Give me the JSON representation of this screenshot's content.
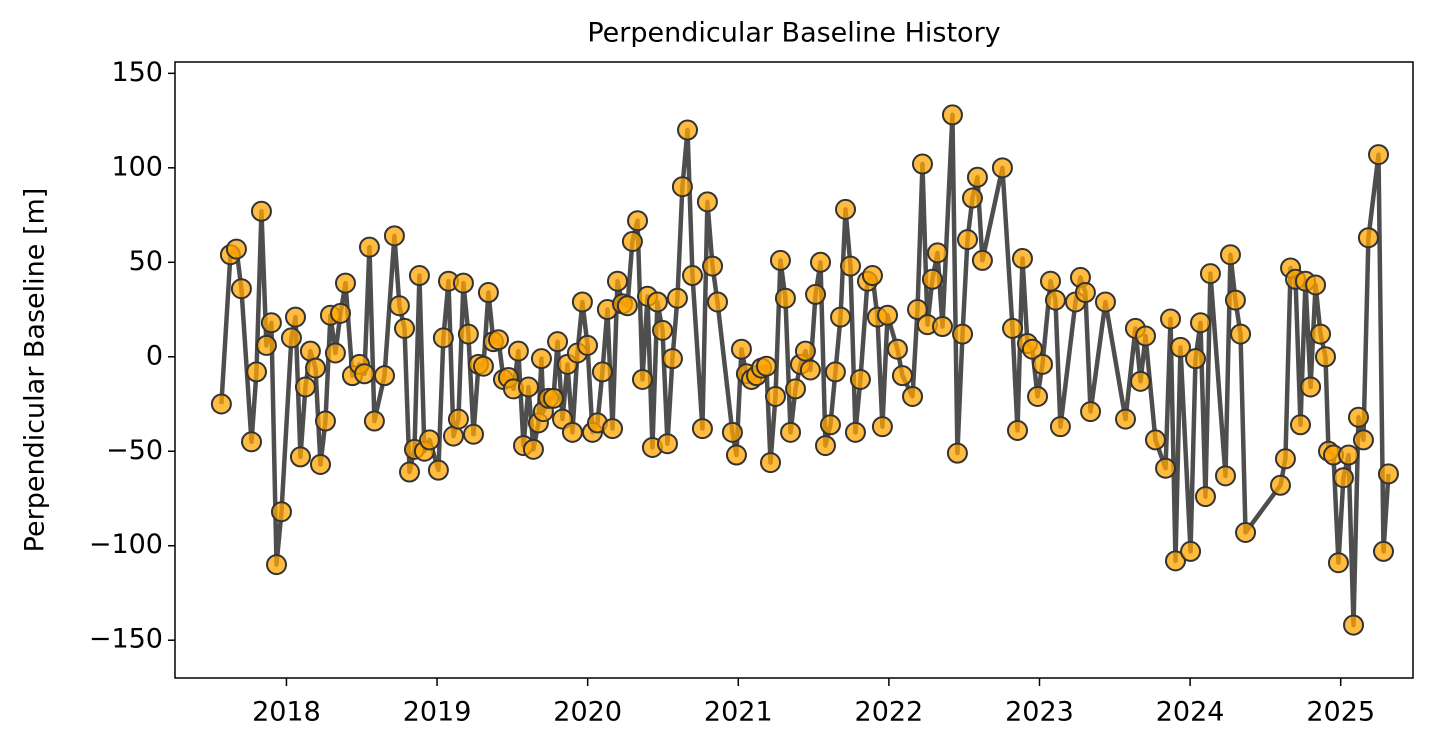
{
  "chart_data": {
    "type": "line",
    "title": "Perpendicular Baseline History",
    "y_label": "Perpendicular Baseline [m]",
    "line_color": "#444444",
    "marker_color": "#ffa500",
    "marker_edge_color": "#333333",
    "x": [
      2017.568,
      2017.628,
      2017.668,
      2017.701,
      2017.768,
      2017.801,
      2017.834,
      2017.867,
      2017.9,
      2017.934,
      2017.967,
      2018.033,
      2018.06,
      2018.093,
      2018.126,
      2018.159,
      2018.193,
      2018.226,
      2018.259,
      2018.292,
      2018.325,
      2018.359,
      2018.392,
      2018.438,
      2018.485,
      2018.518,
      2018.551,
      2018.584,
      2018.651,
      2018.717,
      2018.75,
      2018.784,
      2018.817,
      2018.85,
      2018.883,
      2018.916,
      2018.95,
      2019.009,
      2019.042,
      2019.076,
      2019.109,
      2019.142,
      2019.175,
      2019.208,
      2019.242,
      2019.275,
      2019.308,
      2019.341,
      2019.374,
      2019.408,
      2019.441,
      2019.474,
      2019.507,
      2019.54,
      2019.574,
      2019.607,
      2019.64,
      2019.673,
      2019.693,
      2019.706,
      2019.74,
      2019.773,
      2019.8,
      2019.833,
      2019.866,
      2019.899,
      2019.932,
      2019.965,
      2019.999,
      2020.032,
      2020.065,
      2020.098,
      2020.131,
      2020.165,
      2020.198,
      2020.231,
      2020.264,
      2020.297,
      2020.331,
      2020.364,
      2020.397,
      2020.43,
      2020.463,
      2020.497,
      2020.53,
      2020.563,
      2020.596,
      2020.629,
      2020.663,
      2020.696,
      2020.762,
      2020.795,
      2020.829,
      2020.862,
      2020.961,
      2020.988,
      2021.021,
      2021.054,
      2021.088,
      2021.121,
      2021.154,
      2021.187,
      2021.214,
      2021.247,
      2021.28,
      2021.313,
      2021.347,
      2021.38,
      2021.413,
      2021.446,
      2021.479,
      2021.513,
      2021.546,
      2021.579,
      2021.612,
      2021.645,
      2021.679,
      2021.712,
      2021.745,
      2021.778,
      2021.811,
      2021.858,
      2021.891,
      2021.924,
      2021.957,
      2021.991,
      2022.057,
      2022.09,
      2022.157,
      2022.19,
      2022.223,
      2022.256,
      2022.289,
      2022.323,
      2022.356,
      2022.422,
      2022.455,
      2022.489,
      2022.522,
      2022.555,
      2022.588,
      2022.621,
      2022.754,
      2022.821,
      2022.854,
      2022.887,
      2022.92,
      2022.953,
      2022.987,
      2023.02,
      2023.073,
      2023.106,
      2023.139,
      2023.239,
      2023.272,
      2023.305,
      2023.339,
      2023.438,
      2023.571,
      2023.637,
      2023.671,
      2023.704,
      2023.77,
      2023.837,
      2023.87,
      2023.903,
      2023.936,
      2024.003,
      2024.036,
      2024.069,
      2024.102,
      2024.135,
      2024.235,
      2024.268,
      2024.301,
      2024.335,
      2024.368,
      2024.6,
      2024.633,
      2024.667,
      2024.7,
      2024.733,
      2024.766,
      2024.8,
      2024.833,
      2024.866,
      2024.899,
      2024.919,
      2024.952,
      2024.985,
      2025.018,
      2025.052,
      2025.085,
      2025.118,
      2025.151,
      2025.184,
      2025.251,
      2025.284,
      2025.317
    ],
    "values": [
      -25,
      54,
      57,
      36,
      -45,
      -8,
      77,
      6,
      18,
      -110,
      -82,
      10,
      21,
      -53,
      -16,
      3,
      -6,
      -57,
      -34,
      22,
      2,
      23,
      39,
      -10,
      -4,
      -9,
      58,
      -34,
      -10,
      64,
      27,
      15,
      -61,
      -49,
      43,
      -50,
      -44,
      -60,
      10,
      40,
      -42,
      -33,
      39,
      12,
      -41,
      -4,
      -5,
      34,
      8,
      9,
      -12,
      -11,
      -17,
      3,
      -47,
      -16,
      -49,
      -35,
      -1,
      -29,
      -22,
      -22,
      8,
      -33,
      -4,
      -40,
      2,
      29,
      6,
      -40,
      -35,
      -8,
      25,
      -38,
      40,
      28,
      27,
      61,
      72,
      -12,
      32,
      -48,
      29,
      14,
      -46,
      -1,
      31,
      90,
      120,
      43,
      -38,
      82,
      48,
      29,
      -40,
      -52,
      4,
      -9,
      -12,
      -10,
      -6,
      -5,
      -56,
      -21,
      51,
      31,
      -40,
      -17,
      -4,
      3,
      -7,
      33,
      50,
      -47,
      -36,
      -8,
      21,
      78,
      48,
      -40,
      -12,
      40,
      43,
      21,
      -37,
      22,
      4,
      -10,
      -21,
      25,
      102,
      17,
      41,
      55,
      16,
      128,
      -51,
      12,
      62,
      84,
      95,
      51,
      100,
      15,
      -39,
      52,
      7,
      4,
      -21,
      -4,
      40,
      30,
      -37,
      29,
      42,
      34,
      -29,
      29,
      -33,
      15,
      -13,
      11,
      -44,
      -59,
      20,
      -108,
      5,
      -103,
      -1,
      18,
      -74,
      44,
      -63,
      54,
      30,
      12,
      -93,
      -68,
      -54,
      47,
      41,
      -36,
      40,
      -16,
      38,
      12,
      0,
      -50,
      -52,
      -109,
      -64,
      -52,
      -142,
      -32,
      -44,
      63,
      107,
      -103,
      -62
    ],
    "xlim": [
      2017.26,
      2025.48
    ],
    "ylim": [
      -170,
      156
    ],
    "xticks": [
      2018,
      2019,
      2020,
      2021,
      2022,
      2023,
      2024,
      2025
    ],
    "yticks": [
      {
        "value": -150,
        "label": "−150"
      },
      {
        "value": -100,
        "label": "−100"
      },
      {
        "value": -50,
        "label": "−50"
      },
      0,
      50,
      100,
      150
    ]
  }
}
